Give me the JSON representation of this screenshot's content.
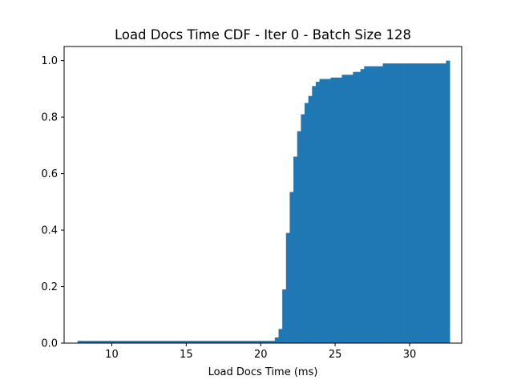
{
  "chart_data": {
    "type": "bar",
    "title": "Load Docs Time CDF - Iter 0 - Batch Size 128",
    "xlabel": "Load Docs Time (ms)",
    "ylabel": "",
    "xlim": [
      6.8,
      33.5
    ],
    "ylim": [
      0.0,
      1.05
    ],
    "xticks": [
      10,
      15,
      20,
      25,
      30
    ],
    "yticks": [
      0.0,
      0.2,
      0.4,
      0.6,
      0.8,
      1.0
    ],
    "ytick_labels": [
      "0.0",
      "0.2",
      "0.4",
      "0.6",
      "0.8",
      "1.0"
    ],
    "grid": false,
    "bar_color": "#1f77b4",
    "cumulative_histogram": {
      "x_start": 7.7,
      "bin_width": 0.25,
      "bin_count": 100,
      "steps": [
        {
          "from": 7.7,
          "value": 0.008
        },
        {
          "from": 20.95,
          "value": 0.02
        },
        {
          "from": 21.2,
          "value": 0.05
        },
        {
          "from": 21.45,
          "value": 0.19
        },
        {
          "from": 21.7,
          "value": 0.39
        },
        {
          "from": 21.95,
          "value": 0.535
        },
        {
          "from": 22.2,
          "value": 0.66
        },
        {
          "from": 22.45,
          "value": 0.75
        },
        {
          "from": 22.7,
          "value": 0.81
        },
        {
          "from": 22.95,
          "value": 0.85
        },
        {
          "from": 23.2,
          "value": 0.875
        },
        {
          "from": 23.45,
          "value": 0.91
        },
        {
          "from": 23.7,
          "value": 0.925
        },
        {
          "from": 23.95,
          "value": 0.935
        },
        {
          "from": 24.7,
          "value": 0.94
        },
        {
          "from": 25.45,
          "value": 0.95
        },
        {
          "from": 26.2,
          "value": 0.96
        },
        {
          "from": 26.7,
          "value": 0.97
        },
        {
          "from": 26.95,
          "value": 0.98
        },
        {
          "from": 28.2,
          "value": 0.99
        },
        {
          "from": 32.45,
          "value": 1.0
        }
      ]
    }
  }
}
